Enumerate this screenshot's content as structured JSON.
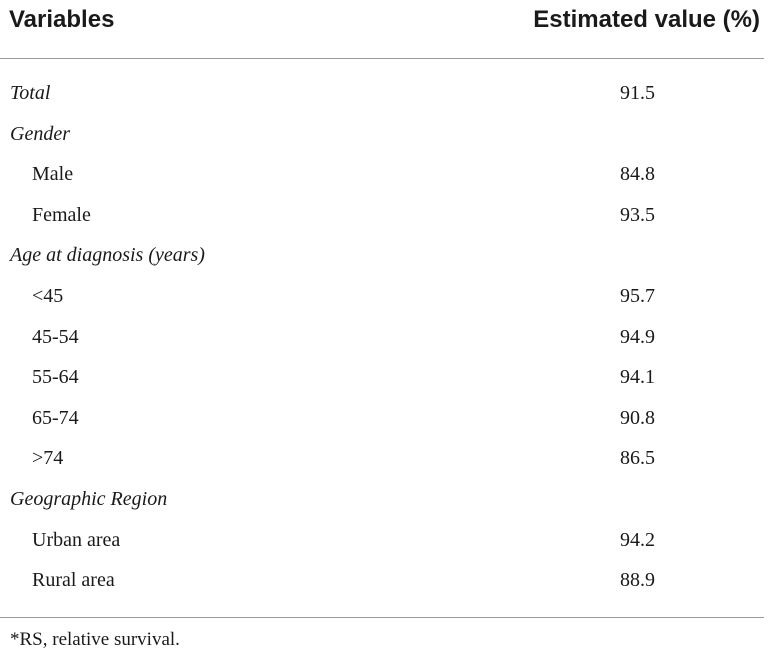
{
  "table": {
    "header": {
      "variables": "Variables",
      "estimated": "Estimated value (%)"
    },
    "rows": [
      {
        "label": "Total",
        "value": "91.5"
      },
      {
        "label": "Gender",
        "value": ""
      },
      {
        "label": "Male",
        "value": "84.8"
      },
      {
        "label": "Female",
        "value": "93.5"
      },
      {
        "label": "Age at diagnosis (years)",
        "value": ""
      },
      {
        "label": "<45",
        "value": "95.7"
      },
      {
        "label": "45-54",
        "value": "94.9"
      },
      {
        "label": "55-64",
        "value": "94.1"
      },
      {
        "label": "65-74",
        "value": "90.8"
      },
      {
        "label": ">74",
        "value": "86.5"
      },
      {
        "label": "Geographic Region",
        "value": ""
      },
      {
        "label": "Urban area",
        "value": "94.2"
      },
      {
        "label": "Rural area",
        "value": "88.9"
      }
    ],
    "footnote": "*RS, relative survival."
  }
}
